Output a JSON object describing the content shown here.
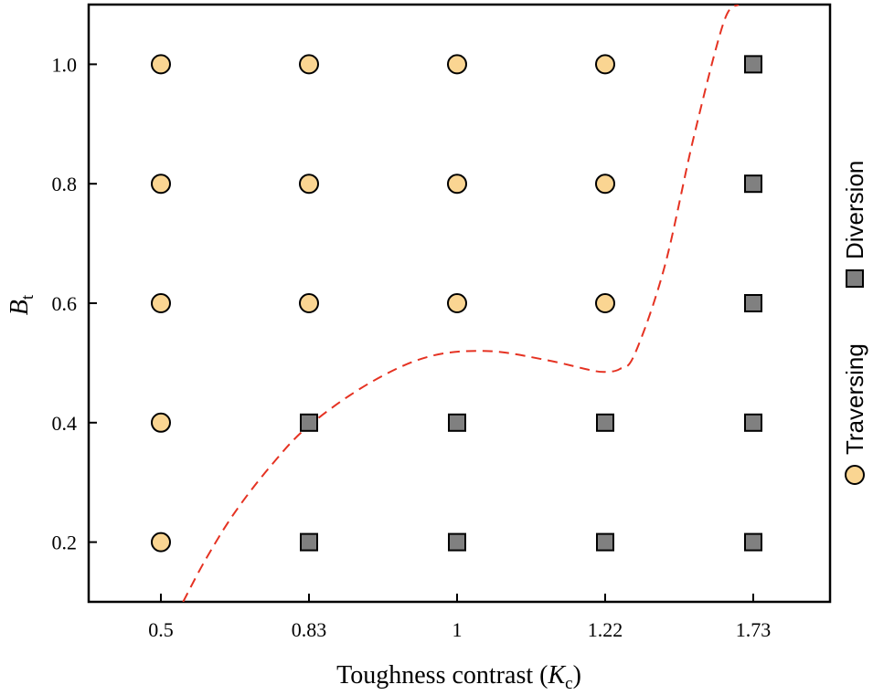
{
  "chart_data": {
    "type": "scatter",
    "title": "",
    "xlabel": {
      "prefix": "Toughness contrast (",
      "symbol": "K",
      "subscript": "c",
      "suffix": ")"
    },
    "ylabel": {
      "symbol": "B",
      "subscript": "t"
    },
    "x_categories": [
      "0.5",
      "0.83",
      "1",
      "1.22",
      "1.73"
    ],
    "y_ticks": [
      "0.2",
      "0.4",
      "0.6",
      "0.8",
      "1.0"
    ],
    "ylim": [
      0.1,
      1.1
    ],
    "series": [
      {
        "name": "Traversing",
        "marker": "circle",
        "color": "#FAD592",
        "points": [
          {
            "x": "0.5",
            "y": 1.0
          },
          {
            "x": "0.83",
            "y": 1.0
          },
          {
            "x": "1",
            "y": 1.0
          },
          {
            "x": "1.22",
            "y": 1.0
          },
          {
            "x": "0.5",
            "y": 0.8
          },
          {
            "x": "0.83",
            "y": 0.8
          },
          {
            "x": "1",
            "y": 0.8
          },
          {
            "x": "1.22",
            "y": 0.8
          },
          {
            "x": "0.5",
            "y": 0.6
          },
          {
            "x": "0.83",
            "y": 0.6
          },
          {
            "x": "1",
            "y": 0.6
          },
          {
            "x": "1.22",
            "y": 0.6
          },
          {
            "x": "0.5",
            "y": 0.4
          },
          {
            "x": "0.5",
            "y": 0.2
          }
        ]
      },
      {
        "name": "Diversion",
        "marker": "square",
        "color": "#808080",
        "points": [
          {
            "x": "1.73",
            "y": 1.0
          },
          {
            "x": "1.73",
            "y": 0.8
          },
          {
            "x": "1.73",
            "y": 0.6
          },
          {
            "x": "0.83",
            "y": 0.4
          },
          {
            "x": "1",
            "y": 0.4
          },
          {
            "x": "1.22",
            "y": 0.4
          },
          {
            "x": "1.73",
            "y": 0.4
          },
          {
            "x": "0.83",
            "y": 0.2
          },
          {
            "x": "1",
            "y": 0.2
          },
          {
            "x": "1.22",
            "y": 0.2
          },
          {
            "x": "1.73",
            "y": 0.2
          }
        ]
      }
    ],
    "boundary": {
      "name": "boundary",
      "style": "dashed",
      "color": "#E53222",
      "x_index": [
        0.15,
        0.3,
        0.5,
        0.75,
        1.0,
        1.4,
        1.8,
        2.2,
        2.6,
        2.9,
        3.0,
        3.1,
        3.2,
        3.4,
        3.6,
        3.8,
        3.9
      ],
      "y": [
        0.1,
        0.17,
        0.25,
        0.33,
        0.395,
        0.465,
        0.51,
        0.52,
        0.505,
        0.488,
        0.485,
        0.49,
        0.515,
        0.66,
        0.88,
        1.07,
        1.1
      ]
    },
    "legend": {
      "placement": "right, vertical",
      "entries": [
        "Traversing",
        "Diversion"
      ]
    },
    "grid": false
  }
}
